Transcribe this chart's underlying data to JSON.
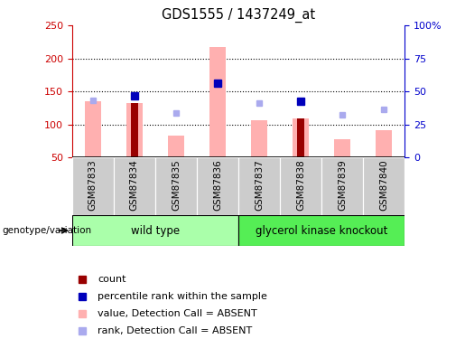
{
  "title": "GDS1555 / 1437249_at",
  "samples": [
    "GSM87833",
    "GSM87834",
    "GSM87835",
    "GSM87836",
    "GSM87837",
    "GSM87838",
    "GSM87839",
    "GSM87840"
  ],
  "groups": [
    {
      "label": "wild type",
      "indices": [
        0,
        1,
        2,
        3
      ],
      "color": "#aaffaa"
    },
    {
      "label": "glycerol kinase knockout",
      "indices": [
        4,
        5,
        6,
        7
      ],
      "color": "#55ee55"
    }
  ],
  "pink_bar_values": [
    135,
    133,
    83,
    217,
    107,
    110,
    78,
    92
  ],
  "red_bar_values": [
    null,
    133,
    null,
    null,
    null,
    110,
    null,
    null
  ],
  "blue_square_values": [
    null,
    143,
    null,
    163,
    null,
    135,
    null,
    null
  ],
  "light_blue_square_values": [
    137,
    null,
    118,
    null,
    133,
    null,
    115,
    123
  ],
  "ylim_left": [
    50,
    250
  ],
  "ylim_right": [
    0,
    100
  ],
  "yticks_left": [
    50,
    100,
    150,
    200,
    250
  ],
  "yticks_right": [
    0,
    25,
    50,
    75,
    100
  ],
  "ytick_labels_right": [
    "0",
    "25",
    "50",
    "75",
    "100%"
  ],
  "bar_bottom": 50,
  "pink_color": "#ffb0b0",
  "red_color": "#990000",
  "blue_color": "#0000bb",
  "light_blue_color": "#aaaaee",
  "left_axis_color": "#cc0000",
  "right_axis_color": "#0000cc",
  "bg_plot": "#ffffff",
  "bg_xtick": "#cccccc",
  "legend_items": [
    {
      "color": "#990000",
      "label": "count"
    },
    {
      "color": "#0000bb",
      "label": "percentile rank within the sample"
    },
    {
      "color": "#ffb0b0",
      "label": "value, Detection Call = ABSENT"
    },
    {
      "color": "#aaaaee",
      "label": "rank, Detection Call = ABSENT"
    }
  ],
  "genotype_label": "genotype/variation"
}
